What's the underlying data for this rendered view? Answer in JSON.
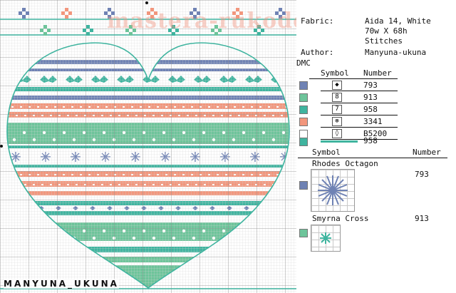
{
  "watermark": "mastera-rukodeliya.ru",
  "signature": "MANYUNA_UKUNA",
  "info": {
    "fabric_label": "Fabric:",
    "fabric_value_1": "Aida 14, White",
    "fabric_value_2": "70w X 68h",
    "fabric_value_3": "Stitches",
    "author_label": "Author:",
    "author_value": "Manyuna-ukuna",
    "brand": "DMC"
  },
  "table1": {
    "symbol_header": "Symbol",
    "number_header": "Number",
    "rows": [
      {
        "symbol": "◆",
        "number": "793",
        "color": "#6f82b4"
      },
      {
        "symbol": "8",
        "number": "913",
        "color": "#6dc49a"
      },
      {
        "symbol": "7",
        "number": "958",
        "color": "#3fb49f"
      },
      {
        "symbol": "⊗",
        "number": "3341",
        "color": "#f2967c"
      },
      {
        "symbol": "◊",
        "number": "B5200",
        "color": "#ffffff"
      },
      {
        "symbol": "",
        "number": "958",
        "color": "#3fb49f"
      }
    ]
  },
  "table2": {
    "symbol_header": "Symbol",
    "number_header": "Number",
    "items": [
      {
        "name": "Rhodes Octagon",
        "number": "793",
        "color": "#6f82b4"
      },
      {
        "name": "Smyrna Cross",
        "number": "913",
        "color": "#6dc49a"
      }
    ]
  },
  "colors": {
    "blue": "#6f82b4",
    "green": "#6dc49a",
    "teal": "#3fb49f",
    "salmon": "#f2967c",
    "white": "#ffffff"
  }
}
